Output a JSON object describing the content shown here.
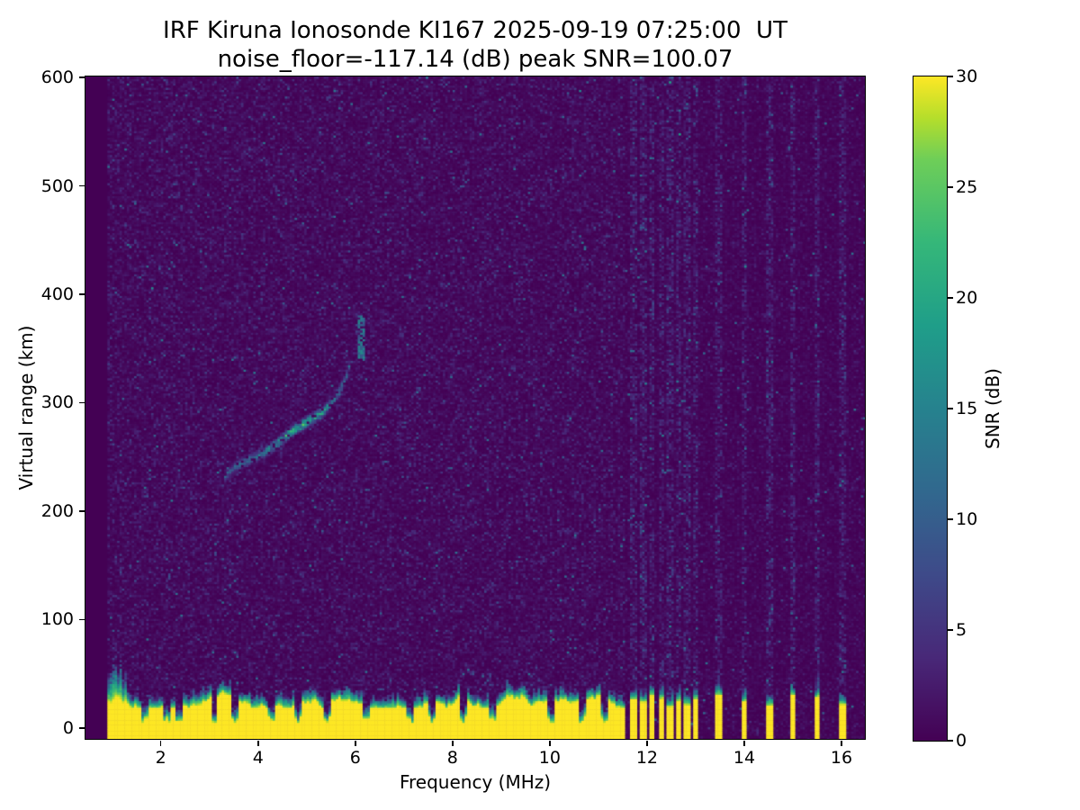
{
  "figure": {
    "title_line1": "IRF Kiruna Ionosonde KI167 2025-09-19 07:25:00  UT",
    "title_line2": "noise_floor=-117.14 (dB) peak SNR=100.07",
    "xlabel": "Frequency (MHz)",
    "ylabel": "Virtual range (km)",
    "colorbar_label": "SNR (dB)"
  },
  "chart_data": {
    "type": "heatmap",
    "title": "IRF Kiruna Ionosonde KI167 2025-09-19 07:25:00  UT",
    "subtitle": "noise_floor=-117.14 (dB) peak SNR=100.07",
    "station": "KI167",
    "timestamp_ut": "2025-09-19 07:25:00",
    "noise_floor_db": -117.14,
    "peak_snr_db": 100.07,
    "xlabel": "Frequency (MHz)",
    "ylabel": "Virtual range (km)",
    "colorbar_label": "SNR (dB)",
    "xlim": [
      0.45,
      16.5
    ],
    "ylim": [
      -11,
      601
    ],
    "x_ticks": [
      2,
      4,
      6,
      8,
      10,
      12,
      14,
      16
    ],
    "y_ticks": [
      0,
      100,
      200,
      300,
      400,
      500,
      600
    ],
    "colorbar_ticks": [
      0,
      5,
      10,
      15,
      20,
      25,
      30
    ],
    "colorbar_range": [
      0,
      30
    ],
    "colormap": "viridis",
    "viridis_stops": [
      [
        0.0,
        "#440154"
      ],
      [
        0.125,
        "#482878"
      ],
      [
        0.25,
        "#3e4a89"
      ],
      [
        0.375,
        "#31688e"
      ],
      [
        0.5,
        "#26828e"
      ],
      [
        0.625,
        "#1f9e89"
      ],
      [
        0.75,
        "#35b779"
      ],
      [
        0.875,
        "#6ece58"
      ],
      [
        0.9375,
        "#b5de2b"
      ],
      [
        1.0,
        "#fde725"
      ]
    ],
    "grid": {
      "f_start_mhz": 0.9,
      "f_step_mhz": 0.05,
      "r_step_km": 2
    },
    "noise_floor_band": {
      "solid_until_mhz": 11.55,
      "base_height_km": 25,
      "height_jitter_km": 9,
      "low_freq_fringe_until_mhz": 1.3,
      "notch_freqs_mhz": [
        1.65,
        2.1,
        2.35,
        3.07,
        3.5,
        4.25,
        4.8,
        5.4,
        6.2,
        7.1,
        7.55,
        8.2,
        8.8,
        10.0,
        10.65,
        11.1
      ]
    },
    "echo_trace": {
      "points_mhz_km": [
        [
          3.25,
          230
        ],
        [
          3.5,
          240
        ],
        [
          3.8,
          247
        ],
        [
          4.1,
          253
        ],
        [
          4.4,
          263
        ],
        [
          4.7,
          274
        ],
        [
          5.0,
          282
        ],
        [
          5.3,
          290
        ],
        [
          5.5,
          300
        ],
        [
          5.65,
          310
        ],
        [
          5.78,
          322
        ],
        [
          5.85,
          333
        ]
      ],
      "peak_snr_db": 24,
      "cusp": {
        "freq_mhz": 6.1,
        "range_min_km": 337,
        "range_max_km": 380
      }
    },
    "interference_stripes_mhz": [
      11.7,
      11.9,
      12.08,
      12.27,
      12.45,
      12.63,
      12.8,
      12.98,
      13.45,
      13.97,
      14.5,
      14.97,
      15.47,
      16.0
    ],
    "background": {
      "plot_bg": "#440154",
      "page_bg": "#ffffff",
      "seed": 42
    }
  }
}
